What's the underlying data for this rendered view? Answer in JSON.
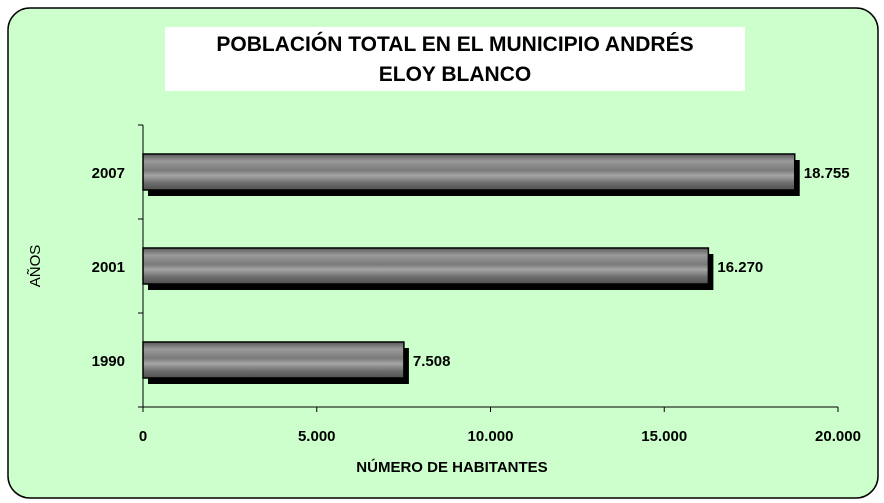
{
  "chart_data": {
    "type": "bar",
    "orientation": "horizontal",
    "title": "POBLACIÓN TOTAL EN EL MUNICIPIO ANDRÉS ELOY BLANCO",
    "x_label": "NÚMERO DE HABITANTES",
    "y_label": "AÑOS",
    "categories": [
      "1990",
      "2001",
      "2007"
    ],
    "values": [
      7508,
      16270,
      18755
    ],
    "value_labels": [
      "7.508",
      "16.270",
      "18.755"
    ],
    "color": "#8a8a8a",
    "xlim": [
      0,
      20000
    ],
    "xticks": [
      0,
      {
        "value": 5000,
        "label": "5.000"
      },
      {
        "value": 10000,
        "label": "10.000"
      },
      {
        "value": 15000,
        "label": "15.000"
      },
      {
        "value": 20000,
        "label": "20.000"
      }
    ],
    "background": "#ccffcc"
  }
}
